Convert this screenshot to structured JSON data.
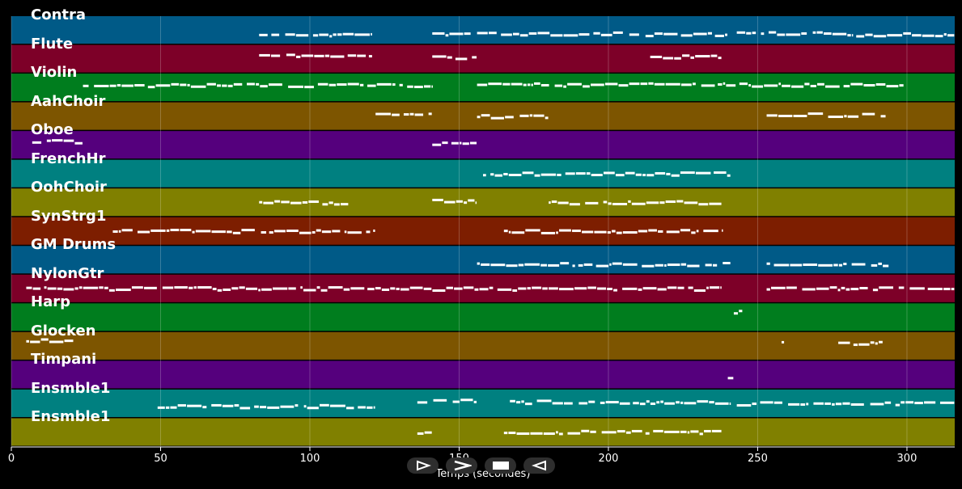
{
  "chart_data": {
    "type": "piano-roll",
    "xlabel": "Temps (secondes)",
    "xlim": [
      0,
      316
    ],
    "xticks": [
      0,
      50,
      100,
      150,
      200,
      250,
      300
    ],
    "grid": true,
    "tracks": [
      {
        "name": "Contra",
        "color": "#005a87",
        "segments": [
          [
            83,
            121,
            0.65
          ],
          [
            141,
            154,
            0.62
          ],
          [
            156,
            205,
            0.63
          ],
          [
            207,
            240,
            0.65
          ],
          [
            243,
            282,
            0.62
          ],
          [
            283,
            316,
            0.65
          ]
        ]
      },
      {
        "name": "Flute",
        "color": "#7d0028",
        "segments": [
          [
            83,
            121,
            0.4
          ],
          [
            141,
            156,
            0.45
          ],
          [
            214,
            238,
            0.42
          ]
        ]
      },
      {
        "name": "Violin",
        "color": "#007d1e",
        "segments": [
          [
            24,
            141,
            0.42
          ],
          [
            156,
            299,
            0.4
          ]
        ]
      },
      {
        "name": "AahChoir",
        "color": "#7d5500",
        "segments": [
          [
            122,
            141,
            0.45
          ],
          [
            156,
            180,
            0.5
          ],
          [
            253,
            293,
            0.45
          ]
        ]
      },
      {
        "name": "Oboe",
        "color": "#55007d",
        "segments": [
          [
            7,
            24,
            0.38
          ],
          [
            141,
            156,
            0.45
          ]
        ]
      },
      {
        "name": "FrenchHr",
        "color": "#008080",
        "segments": [
          [
            158,
            241,
            0.5
          ]
        ]
      },
      {
        "name": "OohChoir",
        "color": "#808000",
        "segments": [
          [
            83,
            113,
            0.5
          ],
          [
            141,
            156,
            0.45
          ],
          [
            180,
            238,
            0.5
          ]
        ]
      },
      {
        "name": "SynStrg1",
        "color": "#7d1e00",
        "segments": [
          [
            34,
            122,
            0.5
          ],
          [
            165,
            238,
            0.5
          ]
        ]
      },
      {
        "name": "GM Drums",
        "color": "#005a87",
        "segments": [
          [
            156,
            241,
            0.65
          ],
          [
            253,
            294,
            0.65
          ]
        ]
      },
      {
        "name": "NylonGtr",
        "color": "#7d0028",
        "segments": [
          [
            5,
            238,
            0.5
          ],
          [
            253,
            316,
            0.5
          ]
        ]
      },
      {
        "name": "Harp",
        "color": "#007d1e",
        "segments": [
          [
            242,
            245,
            0.3
          ]
        ]
      },
      {
        "name": "Glocken",
        "color": "#7d5500",
        "segments": [
          [
            5,
            21,
            0.3
          ],
          [
            258,
            259,
            0.35
          ],
          [
            277,
            292,
            0.4
          ]
        ]
      },
      {
        "name": "Timpani",
        "color": "#55007d",
        "segments": [
          [
            240,
            242,
            0.62
          ]
        ]
      },
      {
        "name": "Ensmble1",
        "color": "#008080",
        "segments": [
          [
            49,
            122,
            0.6
          ],
          [
            136,
            156,
            0.4
          ],
          [
            167,
            241,
            0.45
          ],
          [
            243,
            316,
            0.5
          ]
        ]
      },
      {
        "name": "Ensmble1",
        "color": "#808000",
        "segments": [
          [
            136,
            141,
            0.5
          ],
          [
            165,
            238,
            0.5
          ]
        ]
      }
    ]
  },
  "controls": {
    "play_icon": "play-outline-icon",
    "forward_icon": "chevron-right-icon",
    "stop_icon": "stop-icon",
    "back_icon": "triangle-left-icon"
  }
}
